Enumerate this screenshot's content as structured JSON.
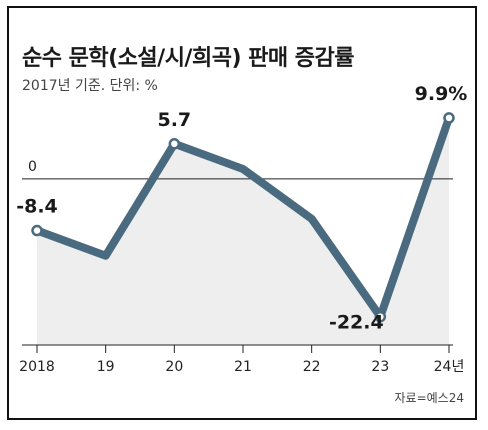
{
  "title": "순수 문학(소설/시/희곡) 판매 증감률",
  "subtitle": "2017년 기준. 단위: %",
  "source": "자료=예스24",
  "colors": {
    "line": "#4a6b7f",
    "area": "#eeeeee",
    "marker_fill": "#ffffff"
  },
  "chart_data": {
    "type": "line",
    "categories": [
      "2018",
      "19",
      "20",
      "21",
      "22",
      "23",
      "24년"
    ],
    "values": [
      -8.4,
      -12.5,
      5.7,
      1.6,
      -6.5,
      -22.4,
      9.9
    ],
    "marked_points": [
      0,
      2,
      5,
      6
    ],
    "data_labels": [
      "-8.4",
      "",
      "5.7",
      "",
      "",
      "-22.4",
      "9.9%"
    ],
    "reference_line": {
      "value": 0,
      "label": "0"
    },
    "ylim": [
      -27,
      12
    ],
    "grid": false,
    "area_fill": true
  }
}
